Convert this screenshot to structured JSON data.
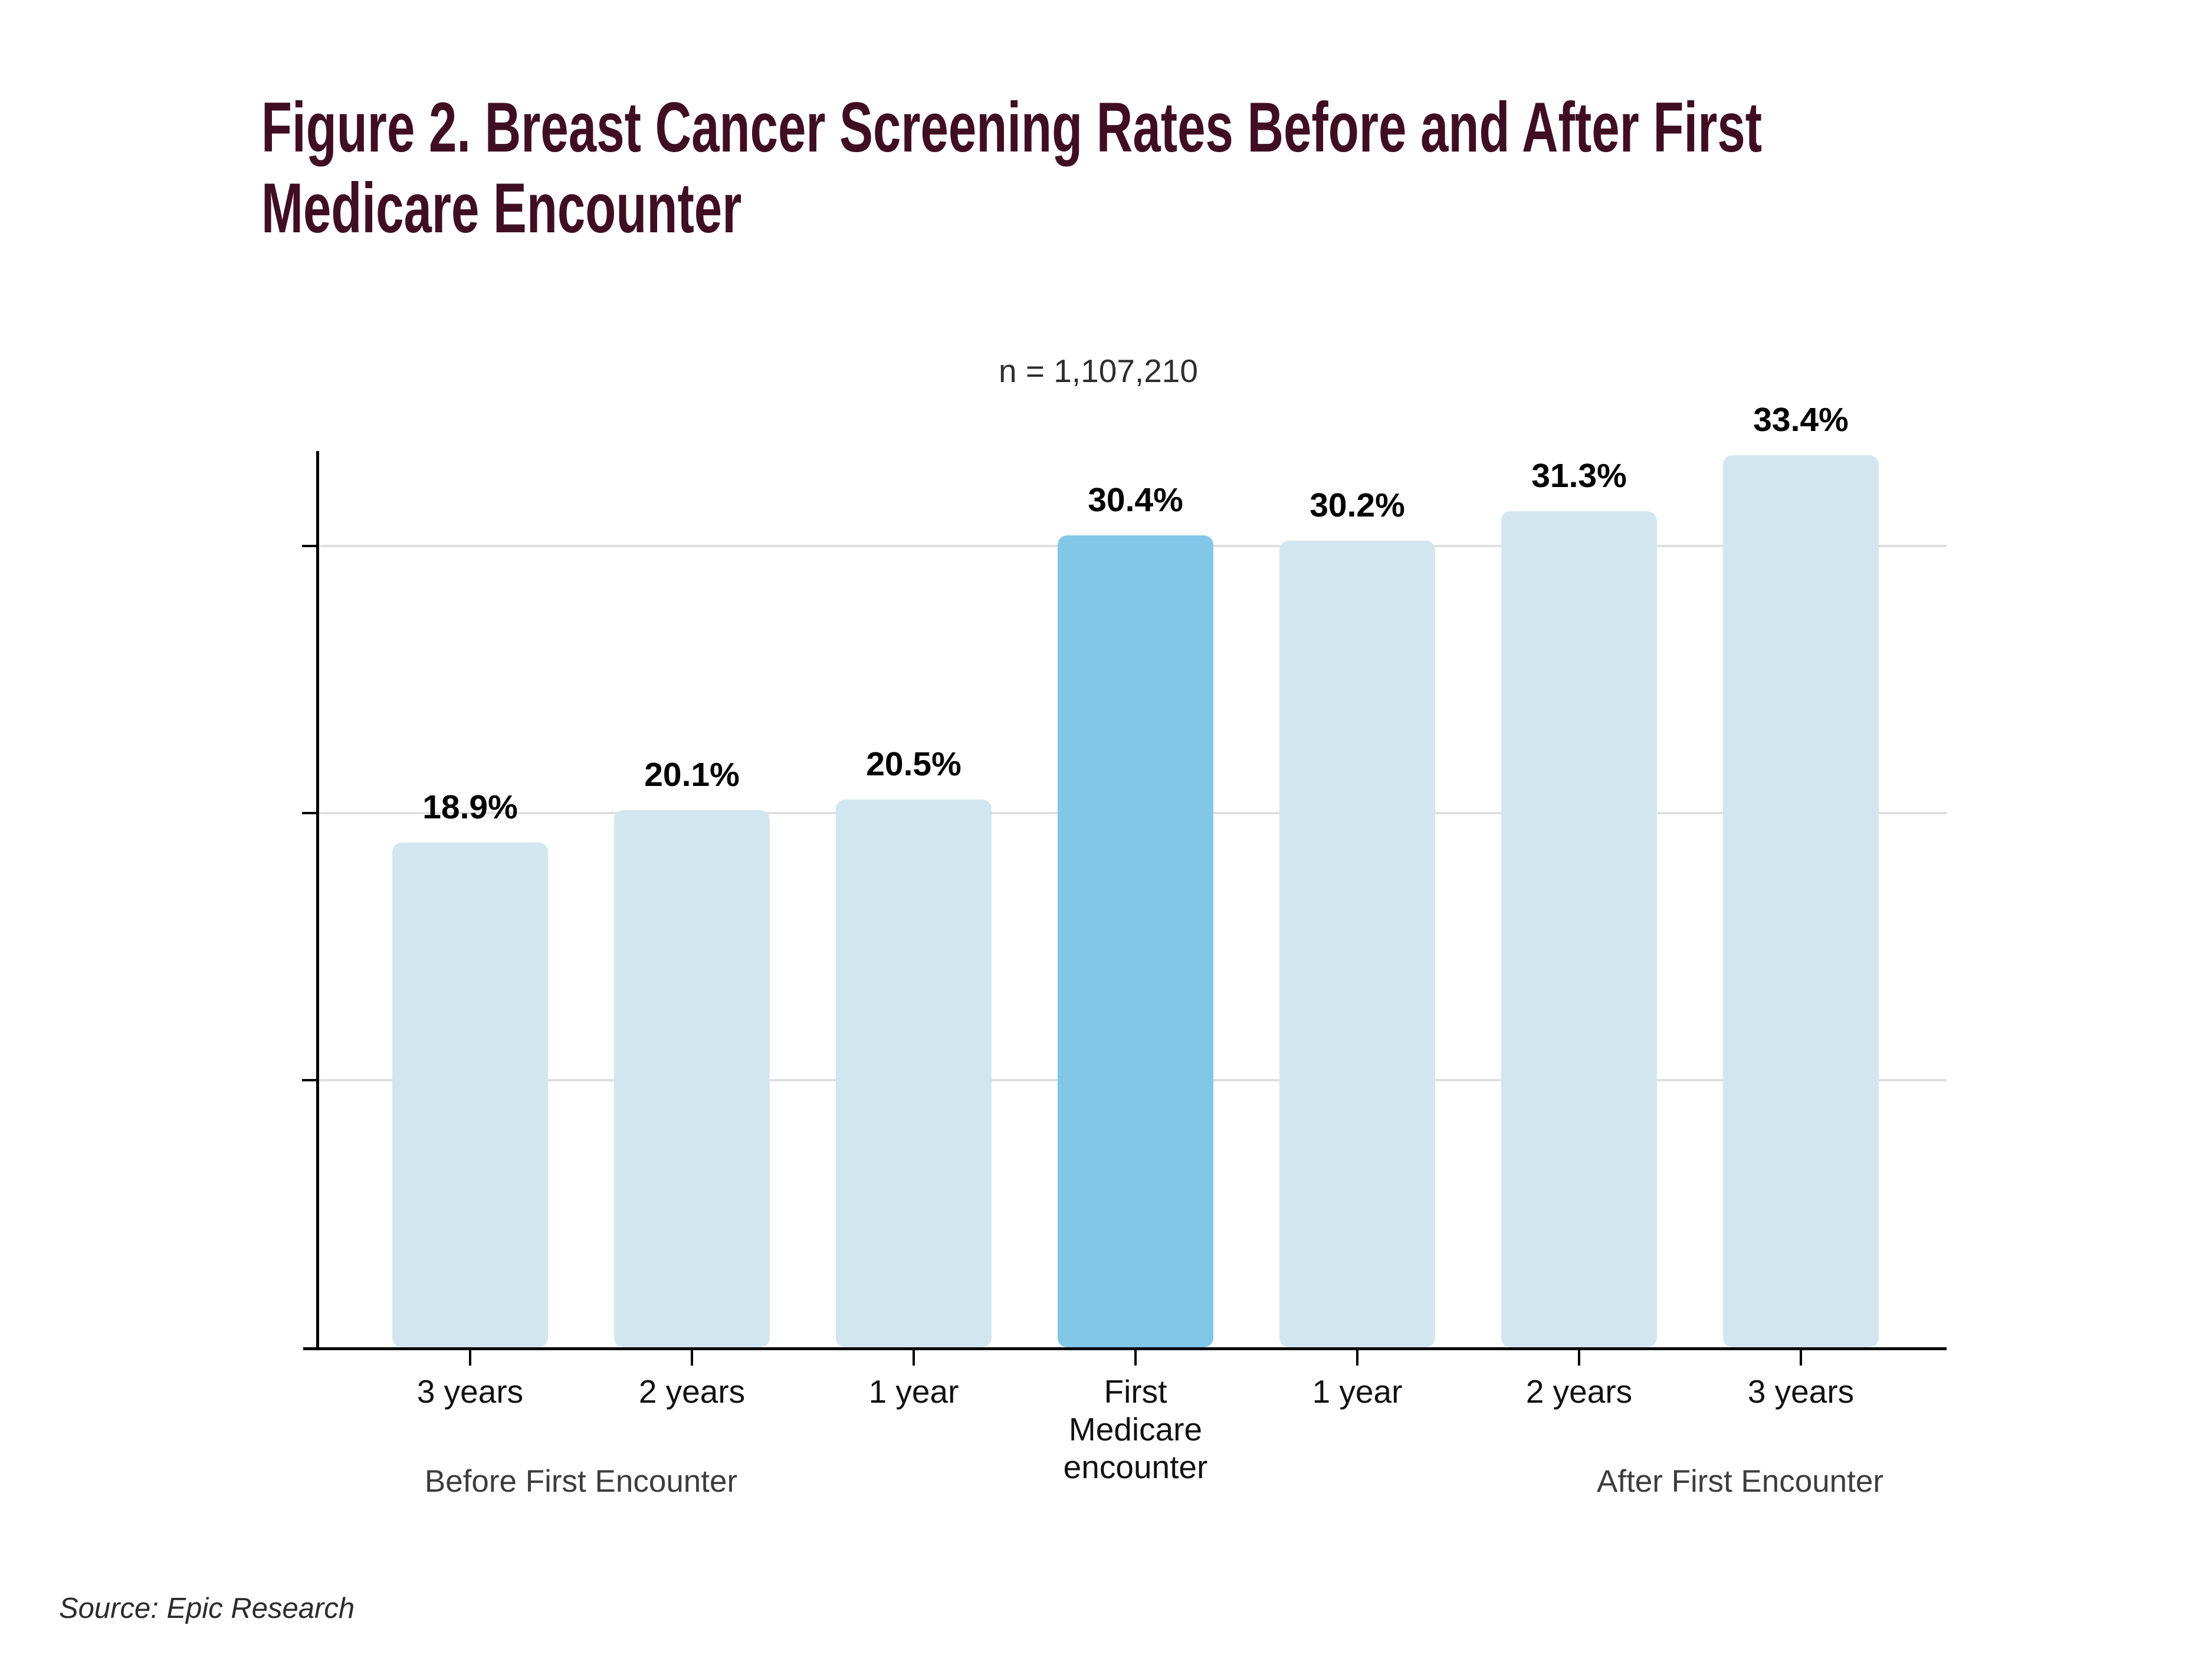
{
  "header": {
    "title_lines": [
      "Figure 2. Breast Cancer Screening Rates Before and After First",
      "Medicare Encounter"
    ]
  },
  "annotation": "n = 1,107,210",
  "source_note": "Source: Epic Research",
  "colors": {
    "title": "#400e22",
    "bar_light": "#d2e6ef",
    "bar_highlight": "#82c7e8",
    "gridline": "#e0e0e0",
    "axis": "#000000",
    "group_label": "#3d3d3d"
  },
  "chart_data": {
    "type": "bar",
    "title": "Figure 2. Breast Cancer Screening Rates Before and After First Medicare Encounter",
    "annotation": "n = 1,107,210",
    "categories": [
      "3 years",
      "2 years",
      "1 year",
      "First Medicare encounter",
      "1 year",
      "2 years",
      "3 years"
    ],
    "values": [
      18.9,
      20.1,
      20.5,
      30.4,
      30.2,
      31.3,
      33.4
    ],
    "value_labels": [
      "18.9%",
      "20.1%",
      "20.5%",
      "30.4%",
      "30.2%",
      "31.3%",
      "33.4%"
    ],
    "highlighted_index": 3,
    "group_labels": [
      "Before First Encounter",
      "After First Encounter"
    ],
    "xlabel": "",
    "ylabel": "",
    "ylim": [
      0,
      35
    ],
    "gridlines_pct": [
      10,
      20,
      30
    ],
    "grid": "horizontal",
    "legend": "none",
    "y_axis_tick_labels": "none"
  }
}
